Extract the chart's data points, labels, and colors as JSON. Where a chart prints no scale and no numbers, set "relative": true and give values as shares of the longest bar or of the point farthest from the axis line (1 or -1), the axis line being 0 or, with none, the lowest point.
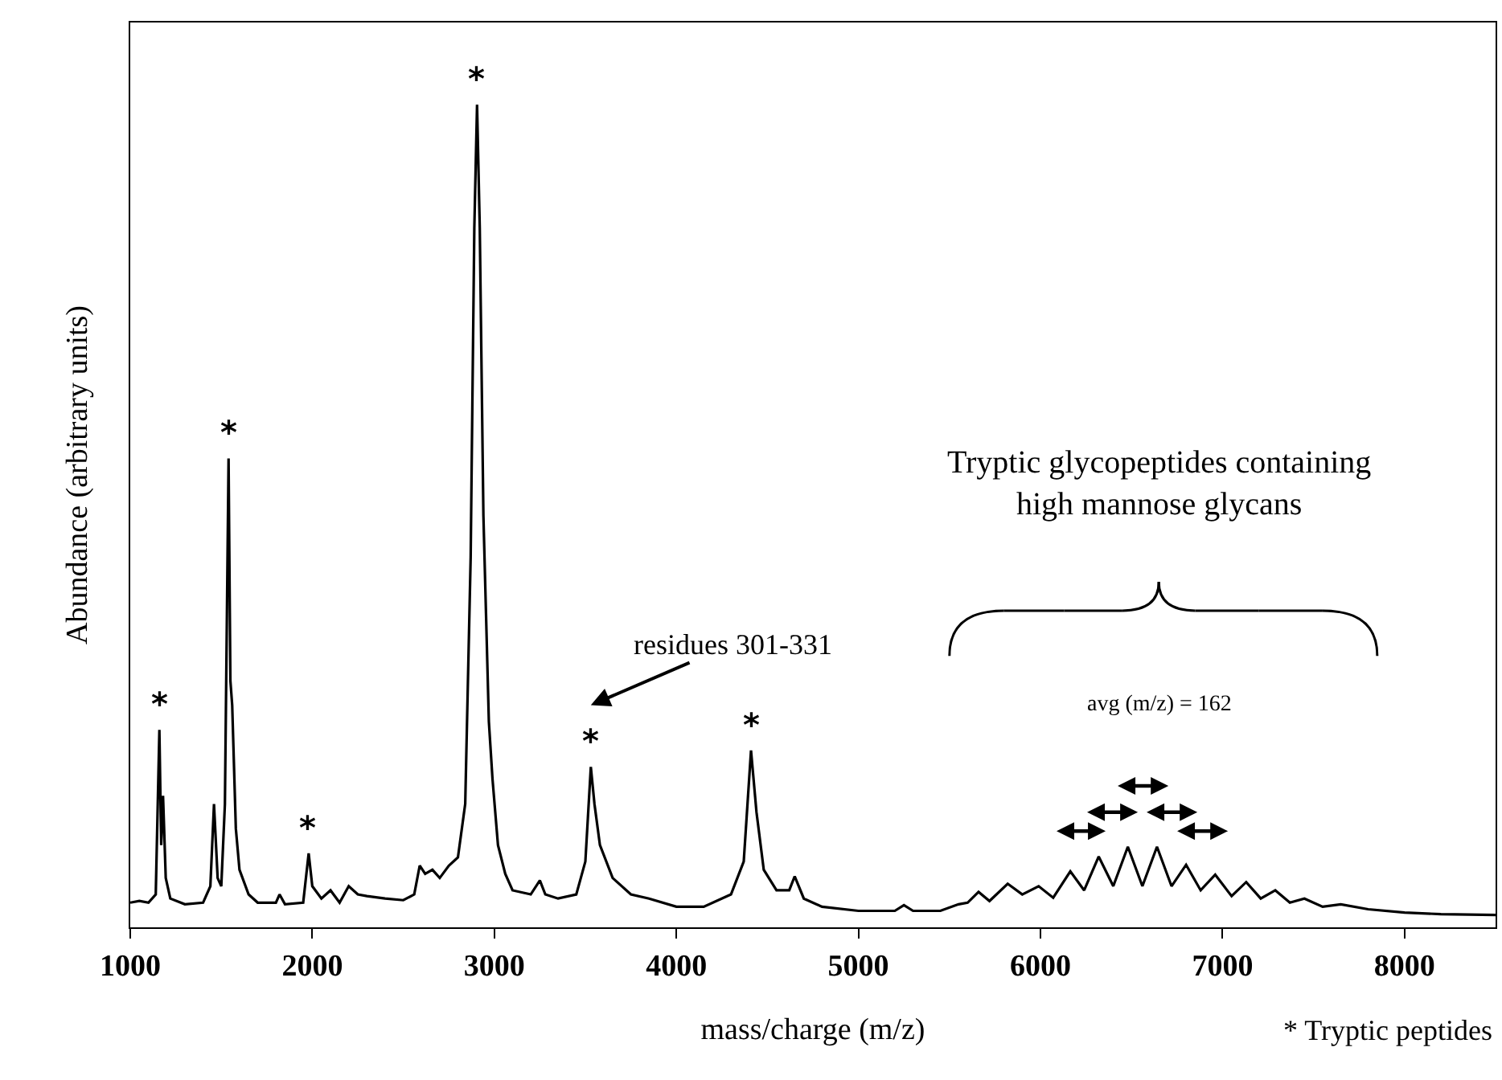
{
  "chart_data": {
    "type": "line",
    "relative": true,
    "xlabel": "mass/charge (m/z)",
    "ylabel": "Abundance (arbitrary units)",
    "xlim": [
      1000,
      8500
    ],
    "xticks": [
      1000,
      2000,
      3000,
      4000,
      5000,
      6000,
      7000,
      8000
    ],
    "marker": "none",
    "line_style": "solid",
    "series": [
      {
        "color": "#000000",
        "x": [
          1000,
          1050,
          1100,
          1140,
          1160,
          1170,
          1180,
          1195,
          1220,
          1300,
          1400,
          1440,
          1460,
          1480,
          1500,
          1520,
          1540,
          1550,
          1560,
          1580,
          1600,
          1650,
          1700,
          1800,
          1820,
          1850,
          1950,
          1980,
          2000,
          2050,
          2100,
          2150,
          2200,
          2250,
          2300,
          2400,
          2500,
          2560,
          2590,
          2620,
          2660,
          2700,
          2750,
          2800,
          2840,
          2870,
          2890,
          2905,
          2920,
          2940,
          2970,
          2990,
          3020,
          3060,
          3100,
          3200,
          3250,
          3280,
          3350,
          3450,
          3500,
          3530,
          3550,
          3580,
          3650,
          3750,
          3850,
          4000,
          4150,
          4300,
          4370,
          4410,
          4440,
          4480,
          4550,
          4620,
          4650,
          4700,
          4800,
          5000,
          5200,
          5250,
          5300,
          5450,
          5550,
          5600,
          5660,
          5720,
          5820,
          5900,
          5990,
          6070,
          6164,
          6240,
          6320,
          6400,
          6480,
          6560,
          6640,
          6720,
          6800,
          6880,
          6960,
          7050,
          7130,
          7210,
          7290,
          7370,
          7450,
          7550,
          7650,
          7800,
          8000,
          8200,
          8500
        ],
        "values": [
          0.03,
          0.032,
          0.03,
          0.04,
          0.24,
          0.1,
          0.16,
          0.06,
          0.035,
          0.028,
          0.03,
          0.05,
          0.15,
          0.06,
          0.05,
          0.15,
          0.57,
          0.3,
          0.27,
          0.12,
          0.07,
          0.04,
          0.03,
          0.03,
          0.04,
          0.028,
          0.03,
          0.09,
          0.05,
          0.035,
          0.045,
          0.03,
          0.05,
          0.04,
          0.038,
          0.035,
          0.033,
          0.04,
          0.075,
          0.065,
          0.07,
          0.06,
          0.075,
          0.085,
          0.15,
          0.45,
          0.85,
          1.0,
          0.85,
          0.5,
          0.25,
          0.18,
          0.1,
          0.065,
          0.045,
          0.04,
          0.057,
          0.04,
          0.035,
          0.04,
          0.08,
          0.195,
          0.15,
          0.1,
          0.06,
          0.04,
          0.035,
          0.025,
          0.025,
          0.04,
          0.08,
          0.215,
          0.14,
          0.07,
          0.045,
          0.045,
          0.062,
          0.035,
          0.025,
          0.02,
          0.02,
          0.027,
          0.02,
          0.02,
          0.028,
          0.03,
          0.043,
          0.032,
          0.053,
          0.04,
          0.05,
          0.036,
          0.068,
          0.045,
          0.086,
          0.05,
          0.098,
          0.05,
          0.098,
          0.05,
          0.076,
          0.045,
          0.064,
          0.038,
          0.055,
          0.035,
          0.045,
          0.03,
          0.035,
          0.025,
          0.028,
          0.022,
          0.018,
          0.016,
          0.015
        ]
      }
    ],
    "annotations": [
      {
        "text": "*",
        "x": 1160,
        "y": 0.24
      },
      {
        "text": "*",
        "x": 1540,
        "y": 0.57
      },
      {
        "text": "*",
        "x": 1980,
        "y": 0.09
      },
      {
        "text": "*",
        "x": 2905,
        "y": 1.0
      },
      {
        "text": "*",
        "x": 3530,
        "y": 0.195
      },
      {
        "text": "*",
        "x": 4410,
        "y": 0.215
      },
      "residues 301-331",
      "Tryptic glycopeptides containing\nhigh mannose glycans",
      "avg (m/z) = 162",
      "* Tryptic peptides"
    ]
  }
}
